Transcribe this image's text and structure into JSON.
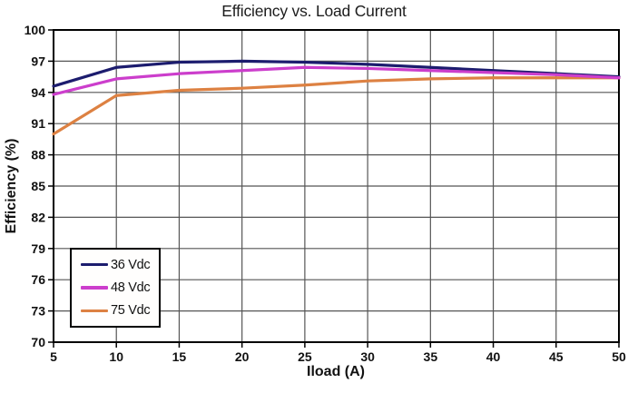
{
  "chart_data": {
    "type": "line",
    "title": "Efficiency vs. Load Current",
    "xlabel": "Iload (A)",
    "ylabel": "Efficiency (%)",
    "x": [
      5,
      10,
      15,
      20,
      25,
      30,
      35,
      40,
      45,
      50
    ],
    "xlim": [
      5,
      50
    ],
    "ylim": [
      70,
      100
    ],
    "xticks": [
      5,
      10,
      15,
      20,
      25,
      30,
      35,
      40,
      45,
      50
    ],
    "yticks": [
      70,
      73,
      76,
      79,
      82,
      85,
      88,
      91,
      94,
      97,
      100
    ],
    "grid": true,
    "legend_position": "bottom-left",
    "series": [
      {
        "name": "36 Vdc",
        "color": "#1c1c6e",
        "values": [
          94.6,
          96.4,
          96.9,
          97.0,
          96.9,
          96.7,
          96.4,
          96.1,
          95.8,
          95.5
        ]
      },
      {
        "name": "48 Vdc",
        "color": "#cc3ecc",
        "values": [
          93.8,
          95.3,
          95.8,
          96.1,
          96.4,
          96.3,
          96.1,
          95.9,
          95.7,
          95.4
        ]
      },
      {
        "name": "75 Vdc",
        "color": "#dd8142",
        "values": [
          90.0,
          93.7,
          94.2,
          94.4,
          94.7,
          95.1,
          95.3,
          95.4,
          95.4,
          95.4
        ]
      }
    ],
    "colors": {
      "grid": "#555555",
      "axis": "#000000",
      "text": "#111111"
    }
  }
}
